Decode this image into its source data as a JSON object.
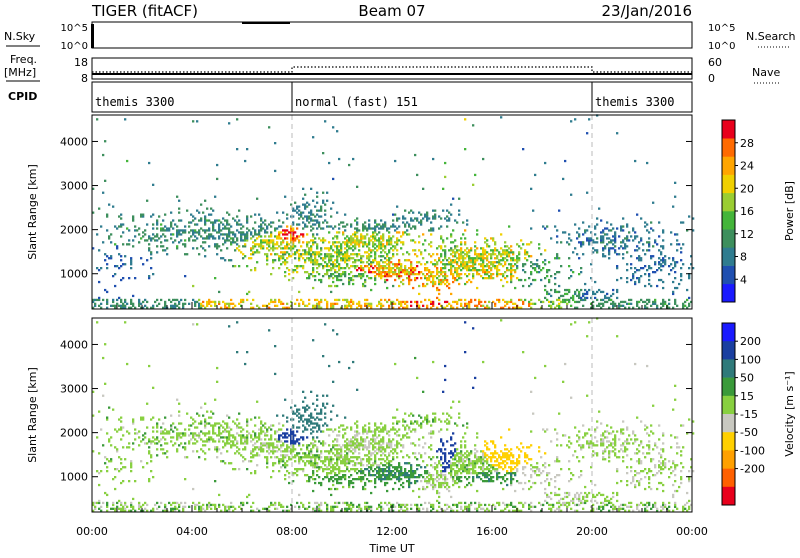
{
  "header": {
    "left": "TIGER (fitACF)",
    "center": "Beam 07",
    "right": "23/Jan/2016"
  },
  "panels": {
    "nsky": {
      "label": "N.Sky",
      "ticks": [
        "10^5",
        "10^0"
      ]
    },
    "nsearch": {
      "label": "N.Search",
      "ticks": [
        "10^5",
        "10^0"
      ]
    },
    "freq": {
      "label_line1": "Freq.",
      "label_line2": "[MHz]",
      "ticks": [
        "18",
        "8"
      ]
    },
    "nave": {
      "label": "Nave",
      "ticks": [
        "60",
        "0"
      ]
    },
    "cpid": {
      "label": "CPID",
      "segments": [
        {
          "start_hour": 0,
          "end_hour": 8,
          "text": "themis 3300"
        },
        {
          "start_hour": 8,
          "end_hour": 20,
          "text": "normal (fast) 151"
        },
        {
          "start_hour": 20,
          "end_hour": 24,
          "text": "themis 3300"
        }
      ]
    }
  },
  "chart_data": [
    {
      "type": "heatmap",
      "name": "power",
      "ylabel": "Slant Range [km]",
      "y_ticks": [
        "1000",
        "2000",
        "3000",
        "4000"
      ],
      "ylim": [
        200,
        4600
      ],
      "colorbar": {
        "label": "Power [dB]",
        "ticks": [
          "4",
          "8",
          "12",
          "16",
          "20",
          "24",
          "28"
        ],
        "range": [
          0,
          32
        ],
        "colors": [
          "#1a1aff",
          "#1f4fb0",
          "#2f7c8f",
          "#3d8f5d",
          "#44b53a",
          "#9acd32",
          "#f0d000",
          "#ffa500",
          "#ff6a00",
          "#e8001c"
        ]
      }
    },
    {
      "type": "heatmap",
      "name": "velocity",
      "ylabel": "Slant Range [km]",
      "y_ticks": [
        "1000",
        "2000",
        "3000",
        "4000"
      ],
      "ylim": [
        200,
        4600
      ],
      "colorbar": {
        "label": "Velocity [m s⁻¹]",
        "ticks": [
          "200",
          "100",
          "50",
          "15",
          "-15",
          "-50",
          "-100",
          "-200"
        ],
        "colors": [
          "#1a1aff",
          "#1a3fa0",
          "#2f7a7a",
          "#3a9a3a",
          "#88d040",
          "#c8c8c0",
          "#ffd000",
          "#ffa000",
          "#ff6000",
          "#e8001c"
        ]
      }
    }
  ],
  "x_axis": {
    "label": "Time UT",
    "ticks": [
      "00:00",
      "04:00",
      "08:00",
      "12:00",
      "16:00",
      "20:00",
      "00:00"
    ],
    "range_hours": [
      0,
      24
    ],
    "cpid_change_hours": [
      8,
      20
    ]
  }
}
